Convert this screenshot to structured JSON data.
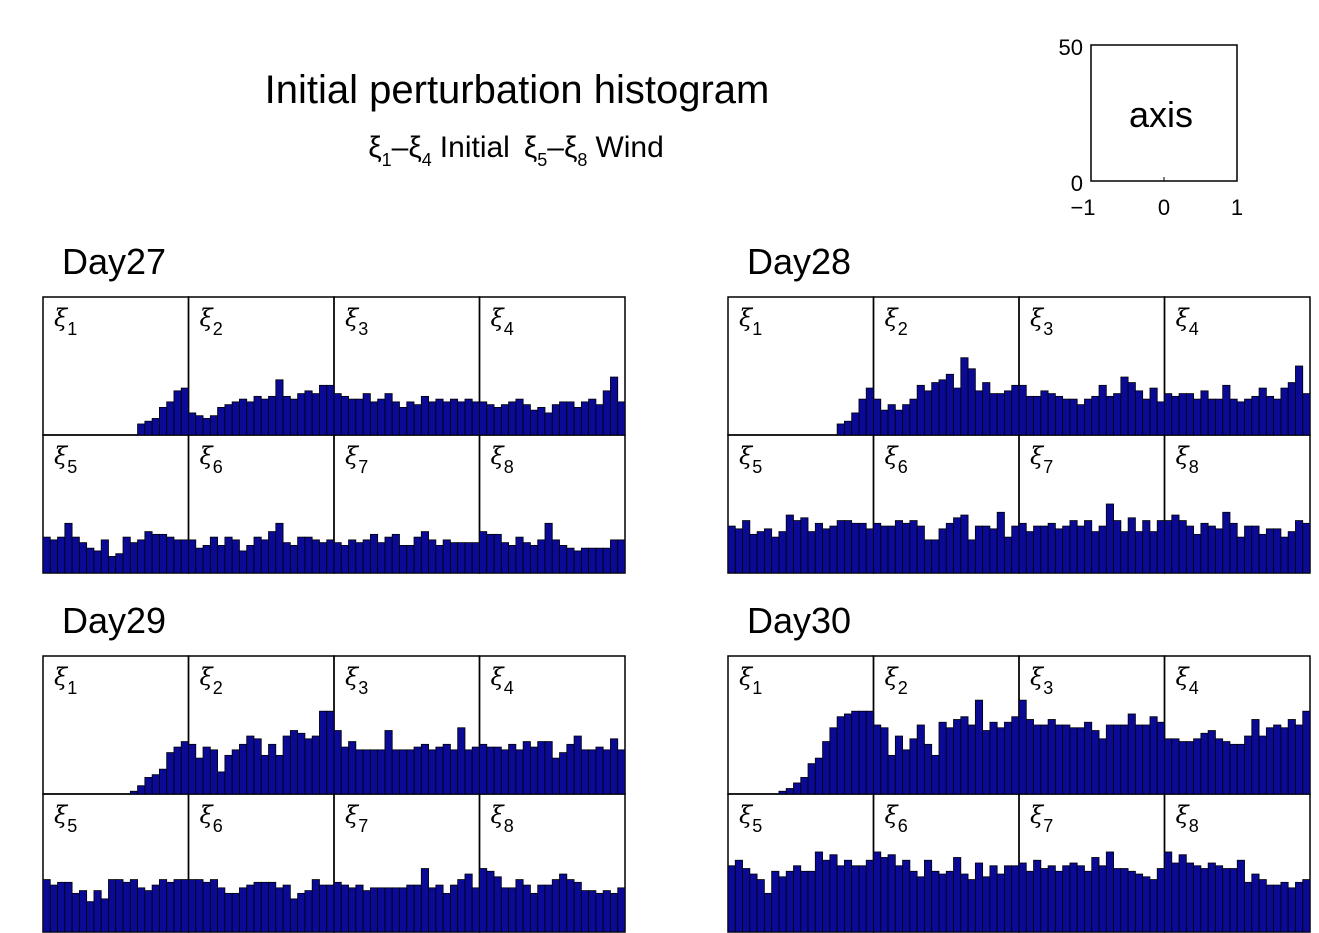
{
  "figure": {
    "title": "Initial perturbation histogram",
    "subtitle": {
      "symbol": "ξ",
      "pair1": {
        "from": "1",
        "to": "4",
        "label": "Initial"
      },
      "pair2": {
        "from": "5",
        "to": "8",
        "label": "Wind"
      },
      "dash": "–"
    },
    "bar_color": "#0a0a96"
  },
  "legend_axis": {
    "label": "axis",
    "xticks": [
      "−1",
      "0",
      "1"
    ],
    "yticks": [
      "0",
      "50"
    ],
    "xlim": [
      -1,
      1
    ],
    "ylim": [
      0,
      50
    ]
  },
  "chart_data": {
    "type": "bar",
    "bins_per_panel": 20,
    "ylim": [
      0,
      50
    ],
    "panel_symbol": "ξ",
    "days": [
      {
        "name": "Day27",
        "panels": [
          {
            "sub": "1",
            "values": [
              0,
              0,
              0,
              0,
              0,
              0,
              0,
              0,
              0,
              0,
              0,
              0,
              0,
              4,
              5,
              6,
              10,
              12,
              16,
              17
            ]
          },
          {
            "sub": "2",
            "values": [
              8,
              7,
              6,
              7,
              10,
              11,
              12,
              13,
              12,
              14,
              13,
              14,
              20,
              14,
              13,
              15,
              16,
              15,
              18,
              18
            ]
          },
          {
            "sub": "3",
            "values": [
              15,
              14,
              13,
              13,
              15,
              12,
              13,
              15,
              12,
              10,
              12,
              11,
              14,
              12,
              13,
              12,
              13,
              12,
              13,
              12
            ]
          },
          {
            "sub": "4",
            "values": [
              12,
              11,
              10,
              11,
              12,
              13,
              11,
              9,
              10,
              8,
              11,
              12,
              12,
              10,
              12,
              13,
              11,
              16,
              21,
              12
            ]
          },
          {
            "sub": "5",
            "values": [
              13,
              12,
              13,
              18,
              13,
              11,
              9,
              8,
              12,
              6,
              7,
              13,
              11,
              12,
              15,
              14,
              14,
              13,
              12,
              12
            ]
          },
          {
            "sub": "6",
            "values": [
              12,
              9,
              10,
              13,
              10,
              13,
              12,
              8,
              10,
              13,
              12,
              15,
              18,
              11,
              10,
              13,
              13,
              12,
              11,
              12
            ]
          },
          {
            "sub": "7",
            "values": [
              11,
              10,
              12,
              11,
              12,
              14,
              11,
              13,
              14,
              10,
              10,
              13,
              15,
              12,
              10,
              12,
              11,
              11,
              11,
              11
            ]
          },
          {
            "sub": "8",
            "values": [
              15,
              14,
              14,
              11,
              10,
              13,
              11,
              10,
              12,
              18,
              12,
              10,
              9,
              8,
              9,
              9,
              9,
              9,
              12,
              12
            ]
          }
        ]
      },
      {
        "name": "Day28",
        "panels": [
          {
            "sub": "1",
            "values": [
              0,
              0,
              0,
              0,
              0,
              0,
              0,
              0,
              0,
              0,
              0,
              0,
              0,
              0,
              0,
              4,
              5,
              8,
              13,
              17
            ]
          },
          {
            "sub": "2",
            "values": [
              13,
              9,
              11,
              9,
              11,
              13,
              18,
              16,
              19,
              20,
              22,
              17,
              28,
              24,
              16,
              19,
              15,
              15,
              16,
              18
            ]
          },
          {
            "sub": "3",
            "values": [
              18,
              14,
              14,
              16,
              15,
              14,
              13,
              13,
              11,
              13,
              14,
              18,
              14,
              15,
              21,
              19,
              16,
              13,
              17,
              12
            ]
          },
          {
            "sub": "4",
            "values": [
              15,
              14,
              15,
              15,
              13,
              16,
              13,
              13,
              18,
              13,
              12,
              13,
              14,
              17,
              14,
              13,
              17,
              19,
              25,
              15
            ]
          },
          {
            "sub": "5",
            "values": [
              17,
              16,
              19,
              14,
              15,
              16,
              13,
              15,
              21,
              19,
              20,
              15,
              18,
              16,
              17,
              19,
              19,
              18,
              18,
              16
            ]
          },
          {
            "sub": "6",
            "values": [
              18,
              17,
              17,
              19,
              18,
              19,
              17,
              12,
              12,
              16,
              18,
              20,
              21,
              12,
              17,
              17,
              16,
              22,
              13,
              17
            ]
          },
          {
            "sub": "7",
            "values": [
              18,
              15,
              17,
              17,
              18,
              16,
              17,
              19,
              17,
              19,
              15,
              17,
              25,
              19,
              15,
              20,
              15,
              19,
              15,
              19
            ]
          },
          {
            "sub": "8",
            "values": [
              19,
              21,
              19,
              17,
              14,
              18,
              17,
              16,
              22,
              18,
              13,
              17,
              17,
              14,
              16,
              16,
              13,
              15,
              19,
              18
            ]
          }
        ]
      },
      {
        "name": "Day29",
        "panels": [
          {
            "sub": "1",
            "values": [
              0,
              0,
              0,
              0,
              0,
              0,
              0,
              0,
              0,
              0,
              0,
              0,
              1,
              3,
              6,
              7,
              9,
              15,
              17,
              19
            ]
          },
          {
            "sub": "2",
            "values": [
              18,
              13,
              17,
              16,
              8,
              14,
              16,
              18,
              21,
              20,
              14,
              18,
              14,
              21,
              23,
              22,
              20,
              21,
              30,
              30
            ]
          },
          {
            "sub": "3",
            "values": [
              23,
              17,
              19,
              16,
              16,
              16,
              16,
              23,
              16,
              16,
              16,
              17,
              18,
              16,
              17,
              18,
              16,
              24,
              16,
              17
            ]
          },
          {
            "sub": "4",
            "values": [
              18,
              17,
              17,
              16,
              18,
              16,
              19,
              17,
              19,
              19,
              13,
              15,
              18,
              21,
              16,
              16,
              17,
              16,
              20,
              16
            ]
          },
          {
            "sub": "5",
            "values": [
              19,
              17,
              18,
              18,
              14,
              15,
              11,
              15,
              12,
              19,
              19,
              18,
              19,
              16,
              15,
              17,
              19,
              18,
              19,
              19
            ]
          },
          {
            "sub": "6",
            "values": [
              19,
              19,
              18,
              19,
              16,
              14,
              14,
              16,
              17,
              18,
              18,
              18,
              16,
              17,
              12,
              14,
              15,
              19,
              17,
              17
            ]
          },
          {
            "sub": "7",
            "values": [
              18,
              17,
              16,
              17,
              15,
              16,
              16,
              16,
              16,
              16,
              17,
              17,
              23,
              16,
              17,
              14,
              17,
              19,
              21,
              16
            ]
          },
          {
            "sub": "8",
            "values": [
              23,
              22,
              20,
              16,
              16,
              19,
              17,
              14,
              17,
              17,
              19,
              21,
              19,
              18,
              15,
              15,
              14,
              15,
              14,
              16
            ]
          }
        ]
      },
      {
        "name": "Day30",
        "panels": [
          {
            "sub": "1",
            "values": [
              0,
              0,
              0,
              0,
              0,
              0,
              0,
              1,
              2,
              4,
              6,
              11,
              13,
              19,
              24,
              28,
              29,
              30,
              30,
              30
            ]
          },
          {
            "sub": "2",
            "values": [
              25,
              24,
              14,
              21,
              16,
              20,
              25,
              18,
              14,
              26,
              24,
              27,
              28,
              25,
              34,
              23,
              26,
              24,
              26,
              28
            ]
          },
          {
            "sub": "3",
            "values": [
              34,
              27,
              25,
              25,
              27,
              25,
              25,
              24,
              24,
              26,
              23,
              20,
              25,
              25,
              25,
              29,
              25,
              25,
              28,
              26
            ]
          },
          {
            "sub": "4",
            "values": [
              20,
              20,
              19,
              19,
              20,
              22,
              23,
              20,
              19,
              18,
              18,
              21,
              27,
              21,
              24,
              25,
              24,
              27,
              25,
              30
            ]
          },
          {
            "sub": "5",
            "values": [
              24,
              26,
              23,
              21,
              19,
              14,
              22,
              20,
              22,
              24,
              22,
              22,
              29,
              26,
              28,
              24,
              26,
              24,
              24,
              26
            ]
          },
          {
            "sub": "6",
            "values": [
              29,
              27,
              28,
              24,
              26,
              22,
              20,
              26,
              22,
              21,
              22,
              27,
              21,
              19,
              25,
              20,
              24,
              21,
              24,
              24
            ]
          },
          {
            "sub": "7",
            "values": [
              25,
              22,
              26,
              23,
              24,
              22,
              24,
              25,
              24,
              22,
              27,
              24,
              29,
              23,
              23,
              22,
              21,
              20,
              19,
              23
            ]
          },
          {
            "sub": "8",
            "values": [
              29,
              25,
              28,
              25,
              24,
              23,
              25,
              24,
              23,
              23,
              26,
              18,
              21,
              19,
              17,
              17,
              18,
              16,
              18,
              19
            ]
          }
        ]
      }
    ]
  }
}
